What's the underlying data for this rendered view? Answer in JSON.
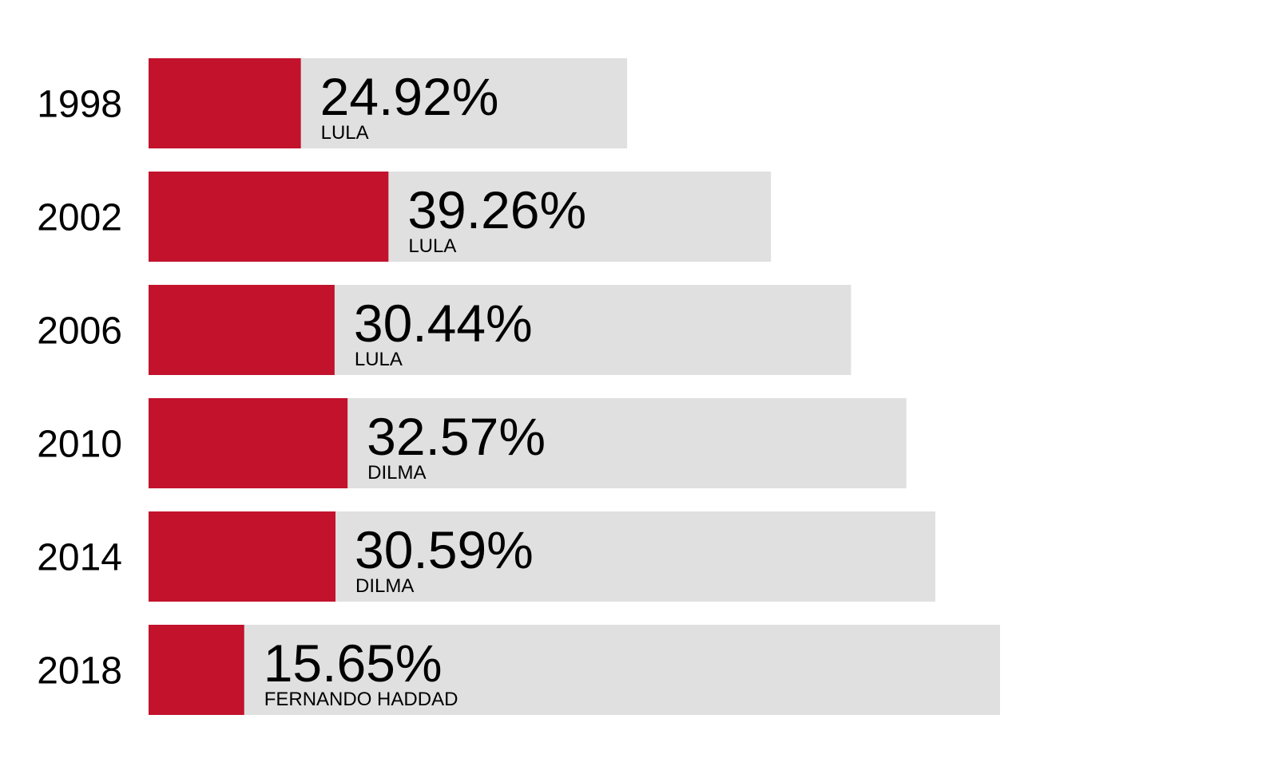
{
  "colors": {
    "vote_bar": "#c2122c",
    "track": "#e0e0e0",
    "text": "#000000",
    "background": "#ffffff"
  },
  "chart_data": {
    "type": "bar",
    "orientation": "horizontal",
    "categories": [
      "1998",
      "2002",
      "2006",
      "2010",
      "2014",
      "2018"
    ],
    "series": [
      {
        "values": [
          24.92,
          39.26,
          30.44,
          32.57,
          30.59,
          15.65
        ],
        "value_labels": [
          "24.92%",
          "39.26%",
          "30.44%",
          "32.57%",
          "30.59%",
          "15.65%"
        ],
        "candidates": [
          "LULA",
          "LULA",
          "LULA",
          "DILMA",
          "DILMA",
          "FERNANDO HADDAD"
        ]
      }
    ],
    "background_bar_relative_length": [
      0.562,
      0.731,
      0.825,
      0.89,
      0.924,
      1.0
    ],
    "title": "",
    "xlabel": "",
    "ylabel": "",
    "legend": "none",
    "grid": false
  }
}
